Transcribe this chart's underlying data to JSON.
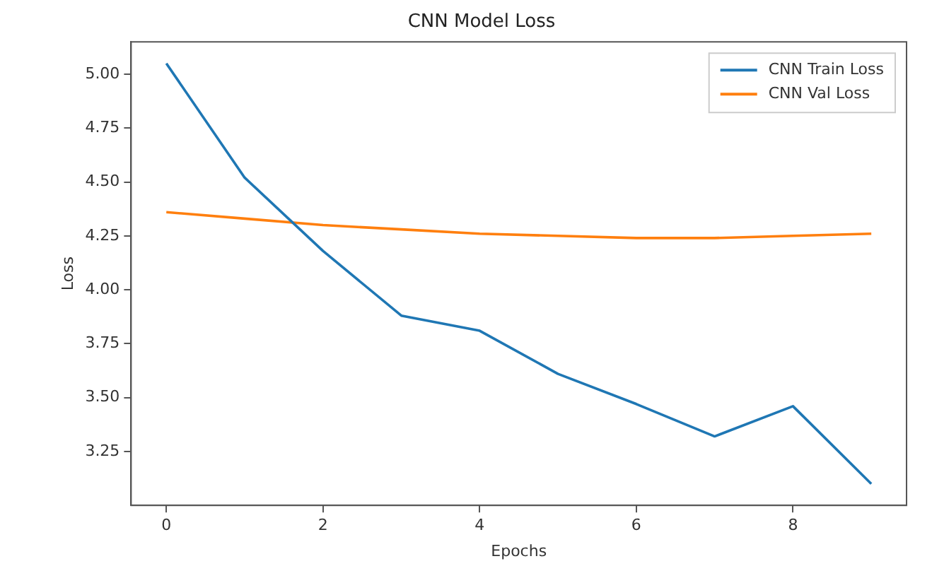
{
  "chart_data": {
    "type": "line",
    "title": "CNN Model Loss",
    "xlabel": "Epochs",
    "ylabel": "Loss",
    "x": [
      0,
      1,
      2,
      3,
      4,
      5,
      6,
      7,
      8,
      9
    ],
    "series": [
      {
        "name": "CNN Train Loss",
        "color": "#1f77b4",
        "values": [
          5.05,
          4.52,
          4.18,
          3.88,
          3.81,
          3.61,
          3.47,
          3.32,
          3.46,
          3.1
        ]
      },
      {
        "name": "CNN Val Loss",
        "color": "#ff7f0e",
        "values": [
          4.36,
          4.33,
          4.3,
          4.28,
          4.26,
          4.25,
          4.24,
          4.24,
          4.25,
          4.26
        ]
      }
    ],
    "xlim": [
      -0.45,
      9.45
    ],
    "xticks": [
      0,
      2,
      4,
      6,
      8
    ],
    "ylim": [
      3.0,
      5.15
    ],
    "yticks": [
      {
        "value": 3.25,
        "label": "3.25"
      },
      {
        "value": 3.5,
        "label": "3.50"
      },
      {
        "value": 3.75,
        "label": "3.75"
      },
      {
        "value": 4,
        "label": "4.00"
      },
      {
        "value": 4.25,
        "label": "4.25"
      },
      {
        "value": 4.5,
        "label": "4.50"
      },
      {
        "value": 4.75,
        "label": "4.75"
      },
      {
        "value": 5,
        "label": "5.00"
      }
    ],
    "grid": false,
    "legend": "top right",
    "marker": "none",
    "line_style": "solid"
  }
}
